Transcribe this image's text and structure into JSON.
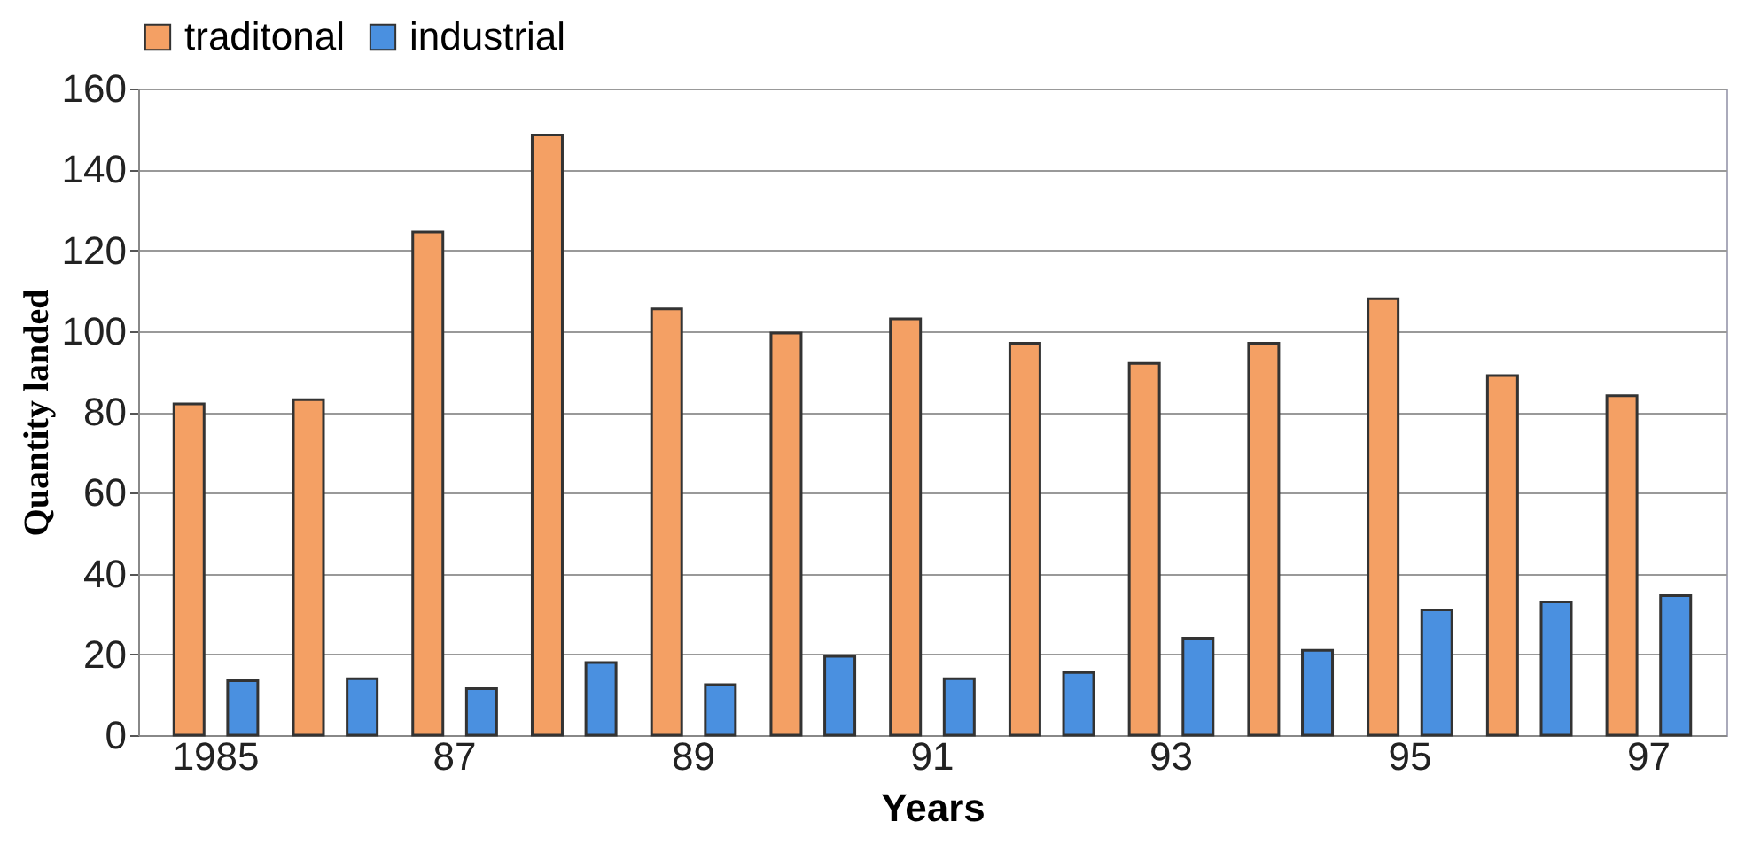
{
  "chart_data": {
    "type": "bar",
    "xlabel": "Years",
    "ylabel": "Quantity landed",
    "categories": [
      "1985",
      null,
      "87",
      null,
      "89",
      null,
      "91",
      null,
      "93",
      null,
      "95",
      null,
      "97"
    ],
    "series": [
      {
        "name": "traditonal",
        "color": "#f4a064",
        "values": [
          82,
          83,
          124.5,
          148.5,
          105.5,
          99.5,
          103,
          97,
          92,
          97,
          108,
          89,
          84
        ]
      },
      {
        "name": "industrial",
        "color": "#4a90e0",
        "values": [
          13.5,
          14,
          11.5,
          18,
          12.5,
          19.5,
          14,
          15.5,
          24,
          21,
          31,
          33,
          34.5
        ]
      }
    ],
    "ylim": [
      0,
      160
    ],
    "yticks": [
      0,
      20,
      40,
      60,
      80,
      100,
      120,
      140,
      160
    ],
    "grid": "y",
    "legend": "top"
  }
}
